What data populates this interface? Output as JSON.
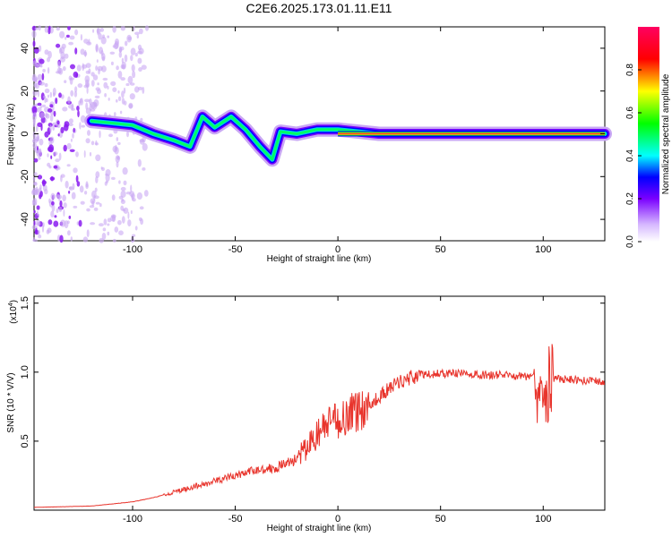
{
  "title": "C2E6.2025.173.01.11.E11",
  "chart_data": [
    {
      "type": "heatmap",
      "xlabel": "Height of straight line (km)",
      "ylabel": "Frequency (Hz)",
      "xlim": [
        -148,
        130
      ],
      "ylim": [
        -50,
        50
      ],
      "xticks": [
        -100,
        -50,
        0,
        50,
        100
      ],
      "yticks": [
        -40,
        -20,
        0,
        20,
        40
      ],
      "colorbar": {
        "label": "Normalized spectral amplitude",
        "range": [
          0,
          1
        ],
        "ticks": [
          0.0,
          0.2,
          0.4,
          0.6,
          0.8
        ]
      },
      "trace": {
        "x": [
          -120,
          -110,
          -100,
          -90,
          -80,
          -72,
          -66,
          -60,
          -52,
          -45,
          -38,
          -32,
          -28,
          -20,
          -10,
          0,
          10,
          20,
          40,
          60,
          80,
          95,
          100,
          105,
          130
        ],
        "y": [
          6,
          5,
          4,
          0,
          -3,
          -6,
          8,
          3,
          8,
          2,
          -6,
          -12,
          1,
          0,
          2,
          2,
          1,
          0,
          0,
          0,
          0,
          0,
          0,
          0,
          0
        ]
      }
    },
    {
      "type": "line",
      "xlabel": "Height of straight line (km)",
      "ylabel": "SNR (10 * V/V)",
      "y_multiplier_label": "(x10",
      "y_multiplier_exp": "4",
      "xlim": [
        -148,
        130
      ],
      "ylim": [
        0,
        1.55
      ],
      "xticks": [
        -100,
        -50,
        0,
        50,
        100
      ],
      "yticks": [
        0.5,
        1.0,
        1.5
      ],
      "series": [
        {
          "color": "#e8342c",
          "x": [
            -148,
            -120,
            -100,
            -90,
            -80,
            -70,
            -60,
            -50,
            -40,
            -30,
            -20,
            -15,
            -10,
            -5,
            0,
            5,
            10,
            15,
            20,
            25,
            30,
            35,
            40,
            50,
            60,
            70,
            80,
            90,
            95,
            100,
            105,
            110,
            120,
            130
          ],
          "y": [
            0.02,
            0.03,
            0.06,
            0.09,
            0.13,
            0.17,
            0.21,
            0.25,
            0.29,
            0.31,
            0.37,
            0.45,
            0.55,
            0.62,
            0.65,
            0.7,
            0.72,
            0.76,
            0.82,
            0.88,
            0.93,
            0.96,
            0.98,
            0.99,
            0.99,
            0.98,
            0.98,
            0.97,
            0.97,
            0.96,
            0.95,
            0.95,
            0.94,
            0.93
          ]
        }
      ]
    }
  ]
}
